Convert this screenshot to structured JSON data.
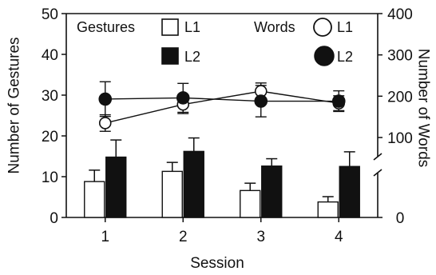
{
  "chart_data": {
    "type": "bar",
    "xlabel": "Session",
    "categories": [
      "1",
      "2",
      "3",
      "4"
    ],
    "left_axis": {
      "label": "Number of Gestures",
      "ylim": [
        0,
        50
      ],
      "ticks": [
        0,
        10,
        20,
        30,
        40,
        50
      ]
    },
    "right_axis": {
      "label": "Number of Words",
      "ylim": [
        0,
        400
      ],
      "ticks": [
        0,
        100,
        200,
        300,
        400
      ],
      "broken": true
    },
    "gesture_series": [
      {
        "name": "L1",
        "values": [
          8.8,
          11.3,
          6.6,
          3.8
        ],
        "errors": [
          2.8,
          2.2,
          1.8,
          1.3
        ],
        "fill": "#ffffff"
      },
      {
        "name": "L2",
        "values": [
          14.8,
          16.2,
          12.6,
          12.5
        ],
        "errors": [
          4.2,
          3.3,
          1.8,
          3.6
        ],
        "fill": "#111111"
      }
    ],
    "word_series": [
      {
        "name": "L1",
        "values": [
          135,
          180,
          212,
          183
        ],
        "errors": [
          20,
          22,
          20,
          18
        ],
        "marker": "open-circle"
      },
      {
        "name": "L2",
        "values": [
          193,
          196,
          188,
          188
        ],
        "errors": [
          42,
          35,
          38,
          25
        ],
        "marker": "filled-circle"
      }
    ],
    "legend": {
      "gestures_title": "Gestures",
      "words_title": "Words",
      "placement": "top"
    },
    "grid": false
  }
}
